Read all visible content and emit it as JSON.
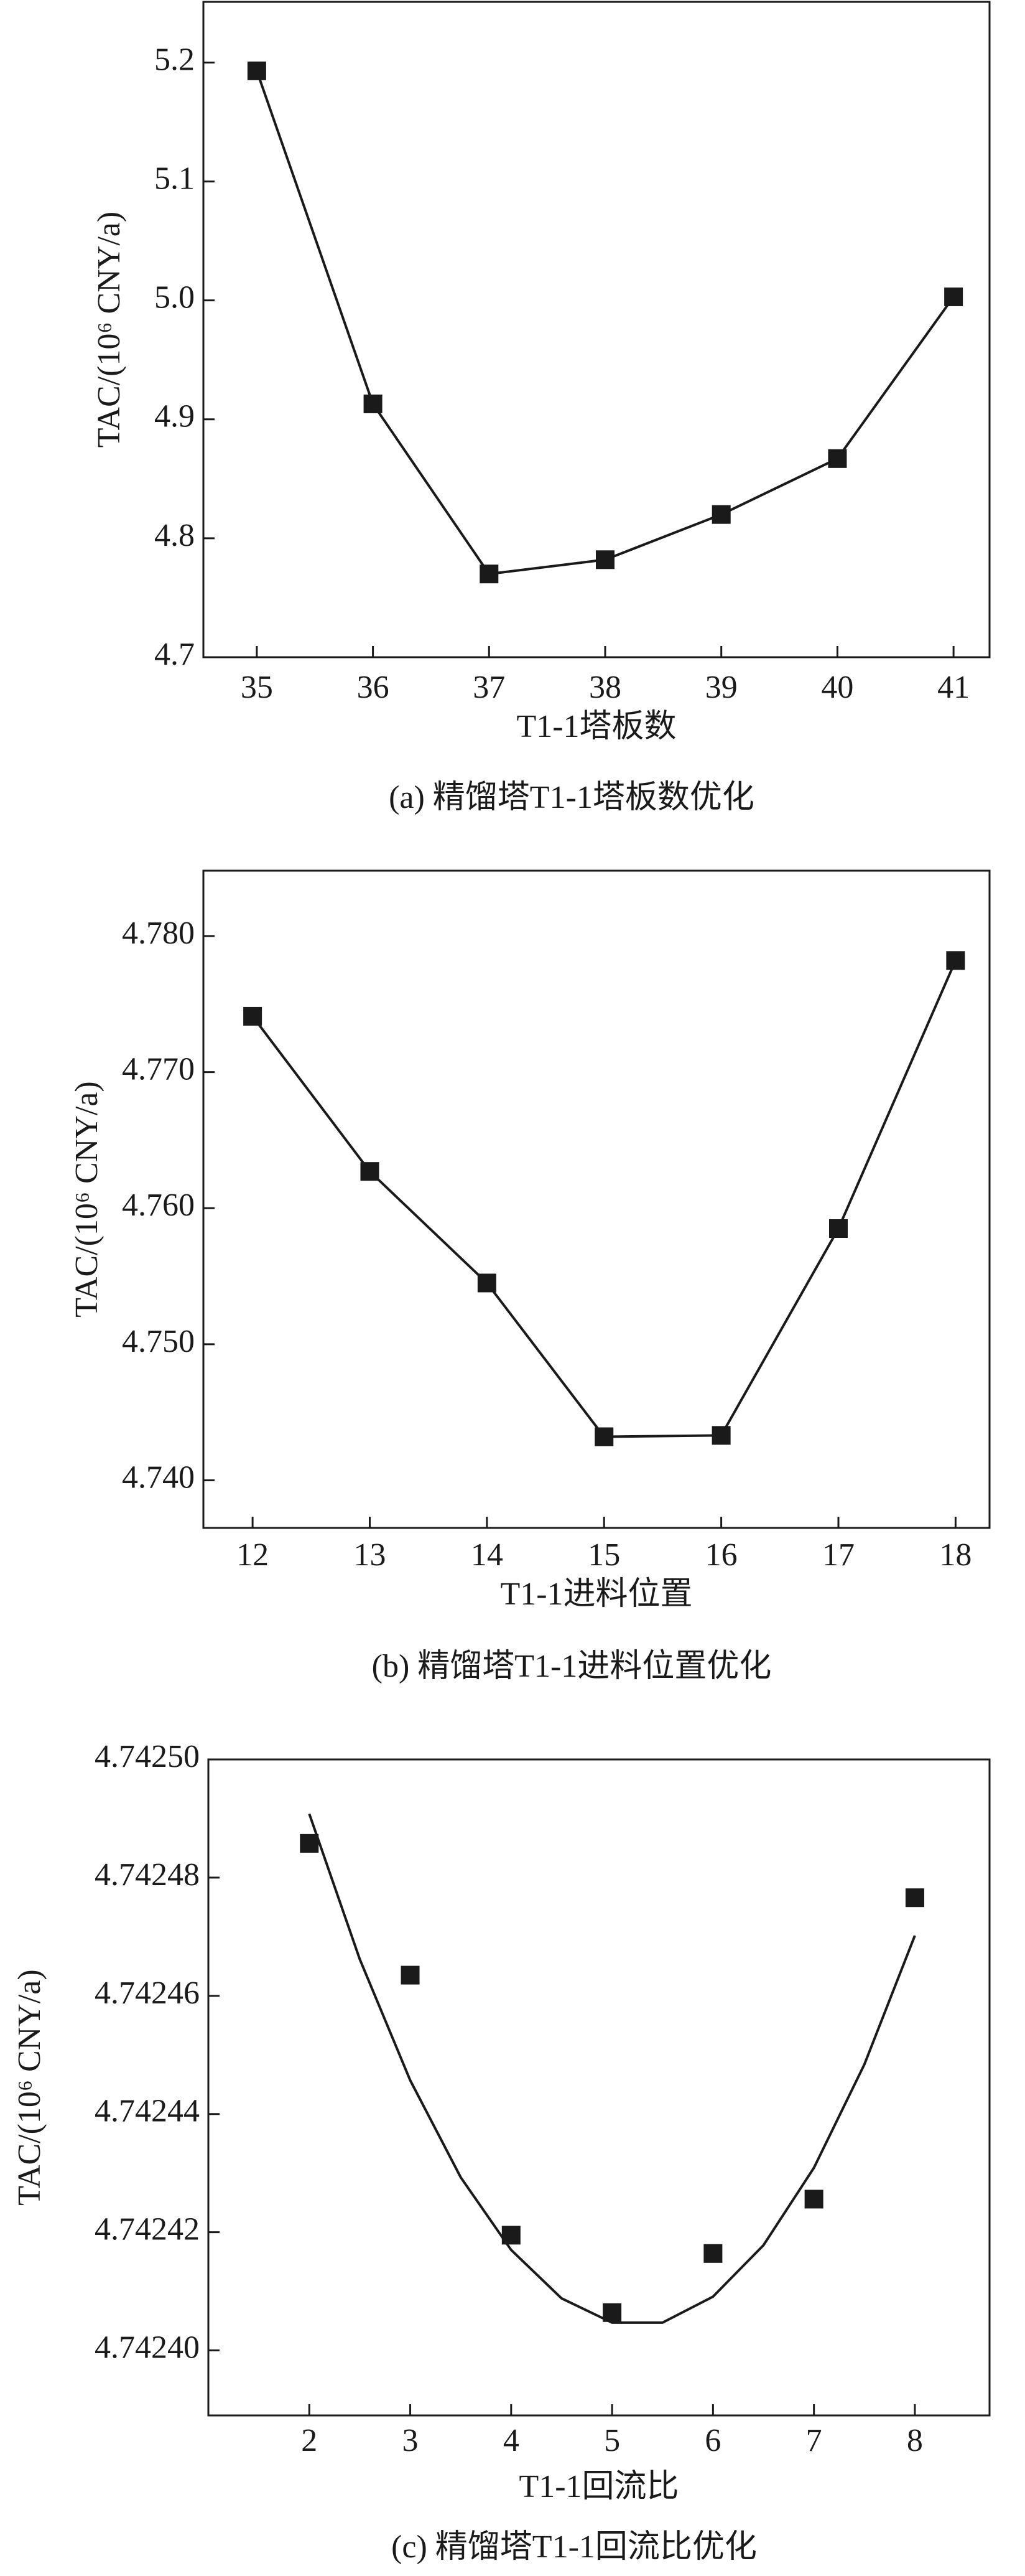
{
  "chart_data": [
    {
      "type": "line",
      "caption": "(a) 精馏塔T1-1塔板数优化",
      "x_label": "T1-1塔板数",
      "y_label": "TAC/(10⁶ CNY/a)",
      "xlim": [
        34.54,
        41.31
      ],
      "ylim": [
        4.7,
        5.251
      ],
      "xticks": [
        35,
        36,
        37,
        38,
        39,
        40,
        41
      ],
      "yticks": [
        4.7,
        4.8,
        4.9,
        {
          "value": 5.0,
          "label": "5.0"
        },
        5.1,
        5.2
      ],
      "series": [
        {
          "color": "#1a1a1a",
          "mode": "lines+markers",
          "x": [
            35,
            36,
            37,
            38,
            39,
            40,
            41
          ],
          "values": [
            5.193,
            4.913,
            4.77,
            4.782,
            4.82,
            4.867,
            5.003
          ]
        }
      ]
    },
    {
      "type": "line",
      "caption": "(b) 精馏塔T1-1进料位置优化",
      "x_label": "T1-1进料位置",
      "y_label": "TAC/(10⁶ CNY/a)",
      "xlim": [
        11.58,
        18.29
      ],
      "ylim": [
        4.7365,
        4.7848
      ],
      "xticks": [
        12,
        13,
        14,
        15,
        16,
        17,
        18
      ],
      "yticks": [
        {
          "value": 4.74,
          "label": "4.740"
        },
        {
          "value": 4.75,
          "label": "4.750"
        },
        {
          "value": 4.76,
          "label": "4.760"
        },
        {
          "value": 4.77,
          "label": "4.770"
        },
        {
          "value": 4.78,
          "label": "4.780"
        }
      ],
      "series": [
        {
          "color": "#1a1a1a",
          "mode": "lines+markers",
          "x": [
            12,
            13,
            14,
            15,
            16,
            17,
            18
          ],
          "values": [
            4.7741,
            4.7627,
            4.7545,
            4.7432,
            4.7433,
            4.7585,
            4.7782
          ]
        }
      ]
    },
    {
      "type": "line",
      "caption": "(c) 精馏塔T1-1回流比优化",
      "x_label": "T1-1回流比",
      "y_label": "TAC/(10⁶ CNY/a)",
      "xlim": [
        1.0,
        8.74
      ],
      "ylim": [
        4.742389,
        4.7425
      ],
      "xticks": [
        2,
        3,
        4,
        5,
        6,
        7,
        8
      ],
      "yticks": [
        {
          "value": 4.7424,
          "label": "4.74240"
        },
        4.74242,
        4.74244,
        4.74246,
        4.74248,
        {
          "value": 4.7425,
          "label": "4.74250"
        }
      ],
      "series": [
        {
          "color": "#1a1a1a",
          "mode": "markers",
          "x": [
            2,
            3,
            4,
            5,
            6,
            7,
            8
          ],
          "values": [
            4.7424858,
            4.7424635,
            4.7424195,
            4.7424064,
            4.7424164,
            4.7424256,
            4.7424766
          ]
        },
        {
          "color": "#1a1a1a",
          "mode": "line",
          "x": [
            2,
            2.5,
            3,
            3.5,
            4,
            4.5,
            5,
            5.5,
            6,
            6.5,
            7,
            7.5,
            8
          ],
          "values": [
            4.7424908,
            4.7424662,
            4.7424457,
            4.7424293,
            4.742417,
            4.7424088,
            4.7424047,
            4.7424047,
            4.7424091,
            4.7424178,
            4.7424309,
            4.7424484,
            4.7424702
          ]
        }
      ]
    }
  ]
}
